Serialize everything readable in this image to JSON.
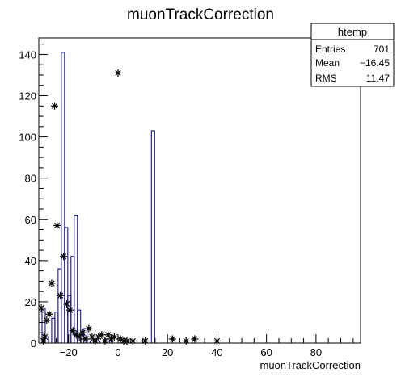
{
  "chart_data": {
    "type": "histogram",
    "title": "muonTrackCorrection",
    "xlabel": "muonTrackCorrection",
    "ylabel": "",
    "xlim": [
      -32,
      98
    ],
    "ylim": [
      0,
      148
    ],
    "x_ticks": [
      -20,
      0,
      20,
      40,
      60,
      80
    ],
    "x_tick_labels": [
      "−20",
      "0",
      "20",
      "40",
      "60",
      "80"
    ],
    "y_ticks": [
      0,
      20,
      40,
      60,
      80,
      100,
      120,
      140
    ],
    "y_tick_labels": [
      "0",
      "20",
      "40",
      "60",
      "80",
      "100",
      "120",
      "140"
    ],
    "bin_edges_start": -32,
    "bin_width": 1.3,
    "counts": [
      0,
      17,
      3,
      0,
      12,
      15,
      36,
      141,
      56,
      23,
      42,
      62,
      16,
      4,
      7,
      1,
      1,
      2,
      1,
      0,
      0,
      0,
      1,
      0,
      0,
      0,
      1,
      0,
      0,
      0,
      0,
      0,
      0,
      0,
      0,
      103,
      0,
      0,
      0,
      0,
      0,
      0,
      0,
      0,
      0,
      0,
      0,
      0,
      0,
      0,
      0,
      0,
      0,
      0,
      0,
      0,
      0,
      0,
      0,
      0,
      0,
      0,
      0,
      0,
      0,
      0,
      0,
      0,
      0,
      0,
      0,
      0,
      0,
      0,
      0,
      0,
      0,
      0,
      0,
      0,
      0,
      0,
      0,
      0,
      0,
      0,
      0,
      0,
      0,
      0,
      0,
      0,
      0,
      0,
      0,
      0,
      0,
      0,
      0,
      0
    ],
    "marker_points": [
      {
        "x": -31,
        "y": 17
      },
      {
        "x": -30.2,
        "y": 1
      },
      {
        "x": -29.5,
        "y": 3
      },
      {
        "x": -28.8,
        "y": 11
      },
      {
        "x": -27.8,
        "y": 14
      },
      {
        "x": -26.8,
        "y": 29
      },
      {
        "x": -25.6,
        "y": 115
      },
      {
        "x": -24.6,
        "y": 57
      },
      {
        "x": -23.3,
        "y": 23
      },
      {
        "x": -22,
        "y": 42
      },
      {
        "x": -20.7,
        "y": 19
      },
      {
        "x": -19.4,
        "y": 16
      },
      {
        "x": -18.2,
        "y": 6
      },
      {
        "x": -16.9,
        "y": 4
      },
      {
        "x": -15.6,
        "y": 3
      },
      {
        "x": -14.3,
        "y": 5
      },
      {
        "x": -13,
        "y": 2
      },
      {
        "x": -11.8,
        "y": 7
      },
      {
        "x": -10.5,
        "y": 3
      },
      {
        "x": -9.2,
        "y": 1
      },
      {
        "x": -7.9,
        "y": 3
      },
      {
        "x": -6.6,
        "y": 4
      },
      {
        "x": -5.3,
        "y": 1
      },
      {
        "x": -4,
        "y": 4
      },
      {
        "x": -2.8,
        "y": 2
      },
      {
        "x": -1.5,
        "y": 3
      },
      {
        "x": 0,
        "y": 131
      },
      {
        "x": 1,
        "y": 2
      },
      {
        "x": 2.3,
        "y": 1
      },
      {
        "x": 3.6,
        "y": 1
      },
      {
        "x": 6,
        "y": 1
      },
      {
        "x": 11,
        "y": 1
      },
      {
        "x": 22,
        "y": 2
      },
      {
        "x": 27.5,
        "y": 1
      },
      {
        "x": 31,
        "y": 2
      },
      {
        "x": 40,
        "y": 1
      }
    ],
    "stats": {
      "name": "htemp",
      "rows": [
        {
          "label": "Entries",
          "value": "701"
        },
        {
          "label": "Mean",
          "value": "−16.45"
        },
        {
          "label": "RMS",
          "value": "11.47"
        }
      ]
    },
    "grid": false,
    "colors": {
      "histogram_line": "#000080",
      "markers": "#000000",
      "frame": "#000000"
    }
  }
}
